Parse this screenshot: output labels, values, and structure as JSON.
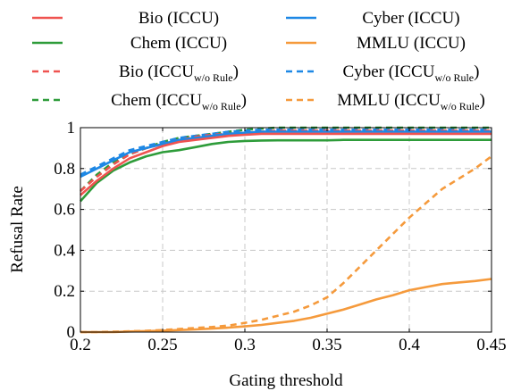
{
  "chart_data": {
    "type": "line",
    "xlabel": "Gating threshold",
    "ylabel": "Refusal Rate",
    "xlim": [
      0.2,
      0.45
    ],
    "ylim": [
      0,
      1
    ],
    "xticks": [
      "0.2",
      "0.25",
      "0.3",
      "0.35",
      "0.4",
      "0.45"
    ],
    "yticks": [
      "0",
      "0.2",
      "0.4",
      "0.6",
      "0.8",
      "1"
    ],
    "grid": true,
    "legend_position": "top",
    "x": [
      0.2,
      0.21,
      0.22,
      0.23,
      0.24,
      0.25,
      0.26,
      0.27,
      0.28,
      0.29,
      0.3,
      0.31,
      0.32,
      0.33,
      0.34,
      0.35,
      0.36,
      0.37,
      0.38,
      0.39,
      0.4,
      0.41,
      0.42,
      0.43,
      0.44,
      0.45
    ],
    "series": [
      {
        "name": "Bio (ICCU)",
        "label_main": "Bio (ICCU)",
        "label_sub": "",
        "label_tail": "",
        "color": "#ef5350",
        "dashed": false,
        "values": [
          0.67,
          0.74,
          0.8,
          0.85,
          0.88,
          0.91,
          0.93,
          0.94,
          0.95,
          0.96,
          0.965,
          0.97,
          0.97,
          0.97,
          0.97,
          0.97,
          0.97,
          0.97,
          0.97,
          0.97,
          0.97,
          0.97,
          0.97,
          0.97,
          0.97,
          0.97
        ]
      },
      {
        "name": "Cyber (ICCU)",
        "label_main": "Cyber (ICCU)",
        "label_sub": "",
        "label_tail": "",
        "color": "#1e88e5",
        "dashed": false,
        "values": [
          0.76,
          0.8,
          0.84,
          0.88,
          0.9,
          0.92,
          0.94,
          0.95,
          0.96,
          0.97,
          0.975,
          0.98,
          0.98,
          0.98,
          0.98,
          0.98,
          0.98,
          0.98,
          0.98,
          0.98,
          0.98,
          0.98,
          0.98,
          0.98,
          0.98,
          0.98
        ]
      },
      {
        "name": "Chem (ICCU)",
        "label_main": "Chem (ICCU)",
        "label_sub": "",
        "label_tail": "",
        "color": "#2e9c3a",
        "dashed": false,
        "values": [
          0.64,
          0.73,
          0.79,
          0.83,
          0.86,
          0.88,
          0.89,
          0.905,
          0.92,
          0.93,
          0.935,
          0.937,
          0.938,
          0.938,
          0.938,
          0.938,
          0.94,
          0.94,
          0.94,
          0.94,
          0.94,
          0.94,
          0.94,
          0.94,
          0.94,
          0.94
        ]
      },
      {
        "name": "MMLU (ICCU)",
        "label_main": "MMLU (ICCU)",
        "label_sub": "",
        "label_tail": "",
        "color": "#f59a3c",
        "dashed": false,
        "values": [
          0.0,
          0.0,
          0.0,
          0.003,
          0.005,
          0.007,
          0.01,
          0.013,
          0.017,
          0.022,
          0.028,
          0.035,
          0.045,
          0.055,
          0.07,
          0.09,
          0.11,
          0.135,
          0.16,
          0.18,
          0.205,
          0.22,
          0.235,
          0.243,
          0.25,
          0.26
        ]
      },
      {
        "name": "Bio (ICCUw/o Rule)",
        "label_main": "Bio (ICCU",
        "label_sub": "w/o Rule",
        "label_tail": ")",
        "color": "#ef5350",
        "dashed": true,
        "values": [
          0.69,
          0.76,
          0.82,
          0.87,
          0.9,
          0.92,
          0.94,
          0.955,
          0.965,
          0.97,
          0.975,
          0.98,
          0.985,
          0.985,
          0.985,
          0.985,
          0.985,
          0.985,
          0.985,
          0.985,
          0.985,
          0.985,
          0.985,
          0.985,
          0.985,
          0.985
        ]
      },
      {
        "name": "Cyber (ICCUw/o Rule)",
        "label_main": "Cyber (ICCU",
        "label_sub": "w/o Rule",
        "label_tail": ")",
        "color": "#1e88e5",
        "dashed": true,
        "values": [
          0.77,
          0.81,
          0.85,
          0.89,
          0.91,
          0.93,
          0.95,
          0.96,
          0.97,
          0.98,
          0.985,
          0.99,
          0.99,
          0.99,
          0.99,
          0.99,
          0.99,
          0.99,
          0.99,
          0.99,
          0.99,
          0.99,
          0.99,
          0.99,
          0.99,
          0.99
        ]
      },
      {
        "name": "Chem (ICCUw/o Rule)",
        "label_main": "Chem (ICCU",
        "label_sub": "w/o Rule",
        "label_tail": ")",
        "color": "#2e9c3a",
        "dashed": true,
        "values": [
          0.69,
          0.77,
          0.83,
          0.87,
          0.9,
          0.93,
          0.95,
          0.96,
          0.97,
          0.98,
          0.99,
          0.995,
          1.0,
          1.0,
          1.0,
          1.0,
          1.0,
          1.0,
          1.0,
          1.0,
          1.0,
          1.0,
          1.0,
          1.0,
          1.0,
          1.0
        ]
      },
      {
        "name": "MMLU (ICCUw/o Rule)",
        "label_main": "MMLU (ICCU",
        "label_sub": "w/o Rule",
        "label_tail": ")",
        "color": "#f59a3c",
        "dashed": true,
        "values": [
          0.0,
          0.0,
          0.002,
          0.004,
          0.006,
          0.01,
          0.015,
          0.02,
          0.025,
          0.032,
          0.045,
          0.06,
          0.08,
          0.1,
          0.13,
          0.17,
          0.24,
          0.32,
          0.4,
          0.48,
          0.56,
          0.63,
          0.7,
          0.75,
          0.8,
          0.86
        ]
      }
    ]
  }
}
